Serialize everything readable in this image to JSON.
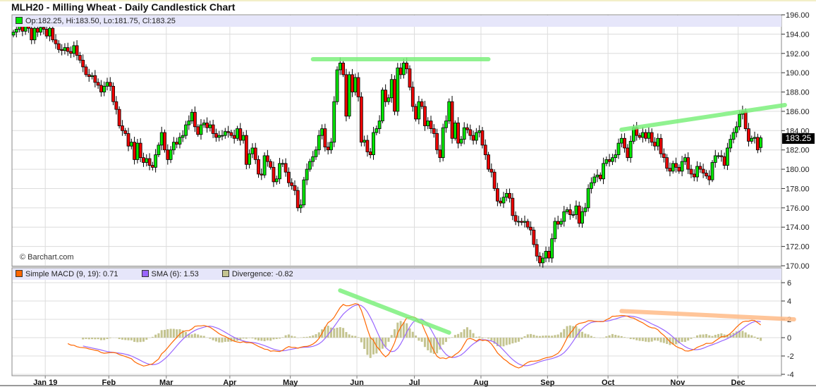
{
  "title": "MLH20 - Milling Wheat - Daily Candlestick Chart",
  "copyright": "© Barchart.com",
  "colors": {
    "up": "#00e600",
    "down": "#ee0000",
    "macd": "#ff6600",
    "sma": "#9966ff",
    "divergence": "#c4c490",
    "highlight_green": "#7df07d",
    "highlight_orange": "#ffbb88",
    "legend_bg": "#e6e6fa"
  },
  "chart_data": {
    "type": "candlestick",
    "price": {
      "legend": "Op:182.25, Hi:183.50, Lo:181.75, Cl:183.25",
      "last_ohlc": {
        "open": 182.25,
        "high": 183.5,
        "low": 181.75,
        "close": 183.25
      },
      "current_price_label": "183.25",
      "ylim": [
        170,
        196
      ],
      "yticks": [
        170,
        172,
        174,
        176,
        178,
        180,
        182,
        184,
        186,
        188,
        190,
        192,
        194,
        196
      ],
      "grid": true,
      "months": [
        {
          "month": "2018-12",
          "label": "",
          "closes": [
            194.2,
            194.5,
            194.8,
            194.3,
            195.0,
            194.6,
            193.4,
            194.6,
            194.2,
            194.7,
            194.5
          ]
        },
        {
          "month": "2019-01",
          "label": "Jan 19",
          "closes": [
            193.8,
            194.6,
            193.4,
            193.0,
            192.4,
            192.3,
            192.6,
            192.2,
            192.0,
            192.8,
            191.8,
            191.3,
            190.6,
            189.8,
            189.6,
            189.7,
            189.0,
            188.7,
            188.0,
            188.6,
            189.0
          ]
        },
        {
          "month": "2019-02",
          "label": "Feb",
          "closes": [
            188.6,
            187.0,
            186.2,
            184.5,
            184.0,
            183.7,
            182.4,
            182.8,
            181.0,
            182.7,
            181.2,
            180.7,
            181.1,
            180.4,
            180.2,
            181.5,
            182.5,
            183.8,
            182.0
          ]
        },
        {
          "month": "2019-03",
          "label": "Mar",
          "closes": [
            181.0,
            182.0,
            182.8,
            182.6,
            183.3,
            183.5,
            184.6,
            185.0,
            185.9,
            184.4,
            183.6,
            184.6,
            184.8,
            184.3,
            184.6,
            183.7,
            183.3,
            183.5,
            183.5,
            183.9,
            183.8
          ]
        },
        {
          "month": "2019-04",
          "label": "Apr",
          "closes": [
            183.5,
            183.2,
            184.2,
            183.0,
            183.5,
            180.5,
            181.6,
            182.2,
            181.0,
            179.5,
            179.4,
            181.4,
            180.8,
            180.2,
            178.7,
            179.0,
            180.6,
            180.6,
            179.7,
            178.6
          ]
        },
        {
          "month": "2019-05",
          "label": "May",
          "closes": [
            178.3,
            177.8,
            176.0,
            176.3,
            178.9,
            180.0,
            180.8,
            181.3,
            182.0,
            183.5,
            184.2,
            182.3,
            182.0,
            182.8,
            187.0,
            190.3,
            191.0,
            189.8,
            185.5,
            189.8,
            188.0,
            189.5
          ]
        },
        {
          "month": "2019-06",
          "label": "Jun",
          "closes": [
            187.5,
            182.8,
            183.0,
            181.8,
            181.5,
            183.8,
            184.2,
            185.0,
            188.2,
            187.0,
            187.4,
            189.3,
            186.0,
            190.5,
            189.8,
            191.0,
            190.4,
            188.5,
            186.5
          ]
        },
        {
          "month": "2019-07",
          "label": "Jul",
          "closes": [
            185.2,
            187.0,
            186.5,
            184.5,
            185.0,
            184.2,
            183.7,
            182.0,
            181.2,
            184.3,
            185.0,
            187.0,
            183.2,
            184.8,
            182.7,
            183.1,
            184.3,
            184.1,
            183.5,
            183.0,
            183.8,
            184.0
          ]
        },
        {
          "month": "2019-08",
          "label": "Aug",
          "closes": [
            182.5,
            181.5,
            180.0,
            179.7,
            178.0,
            176.7,
            176.5,
            177.1,
            177.5,
            177.0,
            175.2,
            174.6,
            174.6,
            174.5,
            174.6,
            174.0,
            173.7,
            172.2,
            171.0,
            170.3,
            170.8,
            171.5
          ]
        },
        {
          "month": "2019-09",
          "label": "Sep",
          "closes": [
            170.8,
            172.8,
            174.6,
            174.3,
            174.6,
            175.6,
            175.8,
            175.3,
            175.3,
            176.2,
            174.4,
            175.6,
            176.0,
            178.0,
            178.6,
            179.2,
            179.4,
            179.0,
            180.6,
            181.0
          ]
        },
        {
          "month": "2019-10",
          "label": "Oct",
          "closes": [
            180.8,
            181.2,
            181.5,
            182.7,
            183.2,
            182.2,
            181.2,
            182.9,
            184.3,
            183.5,
            183.3,
            183.8,
            183.2,
            183.8,
            182.8,
            182.4,
            183.2,
            181.6,
            181.2,
            180.1,
            179.8,
            180.6,
            180.2
          ]
        },
        {
          "month": "2019-11",
          "label": "Nov",
          "closes": [
            179.8,
            180.8,
            181.2,
            180.0,
            179.5,
            179.2,
            180.3,
            180.0,
            179.6,
            179.3,
            178.9,
            180.7,
            181.4,
            181.4,
            181.3,
            180.4,
            182.2,
            183.1,
            183.8,
            184.4
          ]
        },
        {
          "month": "2019-12",
          "label": "Dec",
          "closes": [
            185.7,
            186.0,
            184.2,
            182.9,
            183.2,
            183.3,
            182.0,
            183.25
          ]
        }
      ],
      "annotations": [
        {
          "color": "green",
          "from": {
            "month": "2019-05",
            "day": 7,
            "value": 191.4
          },
          "to": {
            "month": "2019-08",
            "day": 2,
            "value": 191.4
          }
        },
        {
          "color": "green",
          "from": {
            "month": "2019-10",
            "day": 4,
            "value": 184.1
          },
          "to": {
            "month": "2019-12",
            "day": 15,
            "value": 186.65
          }
        }
      ]
    },
    "macd": {
      "legend": [
        {
          "label": "Simple MACD (9, 19): 0.71",
          "color": "#ff6600"
        },
        {
          "label": "SMA (6): 1.53",
          "color": "#9966ff"
        },
        {
          "label": "Divergence: -0.82",
          "color": "#c4c490"
        }
      ],
      "fast": 9,
      "slow": 19,
      "signal": 6,
      "ylim": [
        -4,
        6
      ],
      "yticks": [
        -4,
        -2,
        0,
        2,
        4,
        6
      ],
      "annotations": [
        {
          "color": "green",
          "from": {
            "month": "2019-05",
            "day": 16,
            "value": 5.15
          },
          "to": {
            "month": "2019-07",
            "day": 11,
            "value": 0.55
          }
        },
        {
          "color": "orange",
          "from": {
            "month": "2019-10",
            "day": 4,
            "value": 2.9
          },
          "to": {
            "month": "2019-12",
            "day": 18,
            "value": 2.0
          }
        }
      ]
    }
  }
}
